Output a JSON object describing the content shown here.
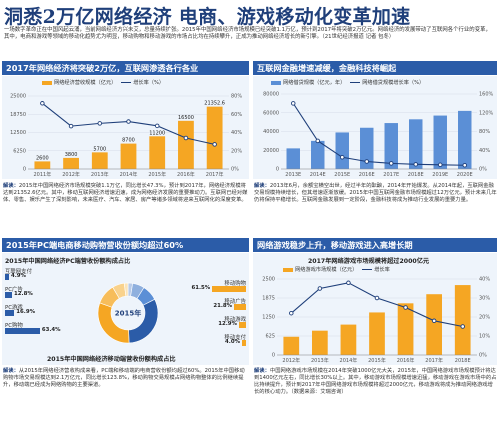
{
  "headline": "洞悉2万亿网络经济 电商、游戏移动化变革加速",
  "intro": "一场数字革命正在中国风起云涌，当前网络经济方兴未艾，总量持续扩张。2015年中国网络经济市场规模已经突破1.1万亿，预计到2017年将突破2万亿元。网络经济的发展带动了互联网各个行业的变革，其中，电商和游戏等领域的移动化趋势尤为明显，移动购物和移动游戏的市场占比均在持续攀升，正成为推动网络经济增长的新引擎。（21世纪经济报道 记者 包冬）",
  "panels": {
    "p1": {
      "banner": "2017年网络经济将突破2万亿，互联网渗透各行各业",
      "legend": [
        "网络经济营收规模（亿元）",
        "增长率（%）"
      ],
      "note_label": "解读：",
      "note": "2015年中国网络经济市场规模突破1.1万亿，同比增长47.3%，预计到2017年，网络经济规模将达到21352.6亿元。其中，移动互联网经济增速迅速，成为网络经济发展的重要推动力。互联网已经对媒体、零售、娱乐产生了深刻影响，未来医疗、汽车、家居、房产等诸多领域将迎来互联网化的深度变革。"
    },
    "p2": {
      "banner": "互联网金融增速减缓，金融科技将崛起",
      "legend": [
        "网络借贷规模（亿元，年）",
        "网络借贷规模增长率（%）"
      ],
      "note_label": "解读：",
      "note": "2013年6月，余额宝横空出世，经过半年的酝酿，2014年开始爆发。从2014年起，互联网金融交易规模持续增长，但其增速逐渐放缓。2015年中国互联网金融市场规模超过12万亿元，预计未来几年仍将保持平稳增长。互联网金融发展到一定阶段，金融科技将成为推动行业发展的重要力量。"
    },
    "p3": {
      "banner": "2015年PC端电商移动购物营收份额均超过60%",
      "sub_title": "2015年中国网络经济PC端营收份额构成占比",
      "pc_items": [
        {
          "label": "互联网支付",
          "value": "4.9%"
        },
        {
          "label": "PC广告",
          "value": "12.8%"
        },
        {
          "label": "PC游戏",
          "value": "16.9%"
        },
        {
          "label": "PC购物",
          "value": "63.4%"
        }
      ],
      "mobile_items": [
        {
          "label": "移动购物",
          "value": "61.5%"
        },
        {
          "label": "移动广告",
          "value": "21.8%"
        },
        {
          "label": "移动游戏",
          "value": "12.9%"
        },
        {
          "label": "移动支付",
          "value": "4.0%"
        }
      ],
      "donut_label": "2015年",
      "bottom_title": "2015年中国网络经济移动端营收份额构成占比",
      "note_label": "解读：",
      "note": "从2015年网络经济营收构成来看，PC端和移动端的电商营收份额均超过60%。2015年中国移动购物市场交易规模达到2.1万亿元，同比增长123.8%，移动购物交易规模占网络购物整体的比例继续提升，移动端已经成为网络购物的主要渠道。"
    },
    "p4": {
      "banner": "网络游戏稳步上升，移动游戏进入高增长期",
      "sub_title": "2017年网络游戏市场规模将超过2000亿元",
      "legend": [
        "网络游戏市场规模（亿元）",
        "增长率"
      ],
      "note_label": "解读：",
      "note": "中国网络游戏市场规模在2014年突破1000亿元大关，2015年，中国网络游戏市场规模预计将达到1400亿元左右，同比增长30%以上。其中，移动游戏市场规模增速迅猛，移动游戏在游戏市场中的占比持续提升，预计到2017年中国网络游戏市场规模将超过2000亿元，移动游戏将成为推动网络游戏增长的核心动力。（数据来源：艾瑞咨询）"
    }
  },
  "chart_data": [
    {
      "type": "bar",
      "title": "",
      "categories": [
        "2011年",
        "2012年",
        "2013年",
        "2014年",
        "2015年",
        "2016年",
        "2017年"
      ],
      "series": [
        {
          "name": "网络经济营收规模（亿元）",
          "values": [
            2600,
            3800,
            5700,
            8700,
            11200,
            16500,
            21352.6
          ]
        },
        {
          "name": "增长率（%）",
          "values": [
            72,
            47,
            50,
            52,
            47.3,
            34,
            27
          ]
        }
      ],
      "data_labels": [
        "2600",
        "3800",
        "5700",
        "8700",
        "11200",
        "16500",
        "21352.6"
      ],
      "legend_position": "top"
    },
    {
      "type": "bar",
      "title": "",
      "categories": [
        "2013E",
        "2014E",
        "2015E",
        "2016E",
        "2017E",
        "2018E",
        "2019E",
        "2020E"
      ],
      "series": [
        {
          "name": "网络借贷规模（亿元，年）",
          "values": [
            22000,
            30000,
            39000,
            44000,
            49000,
            53000,
            57000,
            62000
          ]
        },
        {
          "name": "网络借贷规模增长率（%）",
          "values": [
            140,
            60,
            25,
            16,
            12,
            10,
            9,
            8
          ]
        }
      ],
      "legend_position": "top"
    },
    {
      "type": "bar",
      "title": "2017年网络游戏市场规模将超过2000亿元",
      "categories": [
        "2012年",
        "2013年",
        "2014年",
        "2015年",
        "2016年",
        "2017年",
        "2018E"
      ],
      "series": [
        {
          "name": "网络游戏市场规模（亿元）",
          "values": [
            600,
            800,
            1000,
            1400,
            1700,
            2000,
            2300
          ]
        },
        {
          "name": "增长率",
          "values": [
            22,
            35,
            38,
            30,
            25,
            18,
            15
          ]
        }
      ],
      "legend_position": "top"
    }
  ],
  "colors": {
    "banner": "#2b5ca8",
    "bar_orange": "#f5a623",
    "bar_blue": "#5b8fd6",
    "line_navy": "#1f3f7a",
    "donut_pc": "#2b5ca8",
    "donut_mobile": "#f5a623"
  }
}
